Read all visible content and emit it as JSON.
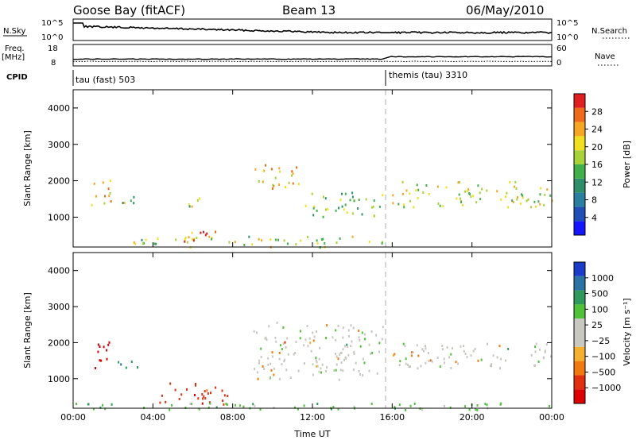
{
  "header": {
    "station": "Goose Bay (fitACF)",
    "beam": "Beam 13",
    "date": "06/May/2010"
  },
  "panels": {
    "nsky": {
      "label": "N.Sky",
      "tick_top": "10^5",
      "tick_bot": "10^0"
    },
    "nsearch": {
      "label": "N.Search",
      "tick_top": "10^5",
      "tick_bot": "10^0"
    },
    "freq": {
      "label_line1": "Freq.",
      "label_line2": "[MHz]",
      "tick_top": "18",
      "tick_bot": "8"
    },
    "nave": {
      "label": "Nave",
      "tick_top": "60",
      "tick_bot": "0"
    },
    "cpid": {
      "label": "CPID",
      "mode1": "tau (fast) 503",
      "mode2": "themis (tau) 3310"
    }
  },
  "chart_data": [
    {
      "type": "heatmap",
      "quantity": "Power",
      "ylabel": "Slant Range [km]",
      "xlabel": "",
      "ylim": [
        180,
        4500
      ],
      "xlim_hours": [
        0,
        24
      ],
      "x_ticks": [
        "00:00",
        "04:00",
        "08:00",
        "12:00",
        "16:00",
        "20:00",
        "00:00"
      ],
      "y_ticks": [
        "1000",
        "2000",
        "3000",
        "4000"
      ],
      "colorbar": {
        "label": "Power [dB]",
        "ticks": [
          "4",
          "8",
          "12",
          "16",
          "20",
          "24",
          "28"
        ],
        "colors": [
          "#1515ff",
          "#1f4fb5",
          "#2a7fa0",
          "#2f8f6a",
          "#42b04a",
          "#a8d23a",
          "#f0e020",
          "#f5a623",
          "#ef6a1a",
          "#e02020"
        ]
      },
      "gap_at_hour": 15.75,
      "regions": [
        {
          "t": [
            0.9,
            1.9
          ],
          "r": [
            1300,
            2100
          ],
          "level": 0.6
        },
        {
          "t": [
            2.2,
            3.2
          ],
          "r": [
            1300,
            1700
          ],
          "level": 0.5
        },
        {
          "t": [
            5.7,
            6.4
          ],
          "r": [
            1300,
            1800
          ],
          "level": 0.5
        },
        {
          "t": [
            9.1,
            11.5
          ],
          "r": [
            1800,
            2500
          ],
          "level": 0.65
        },
        {
          "t": [
            11.5,
            15.5
          ],
          "r": [
            1000,
            1700
          ],
          "level": 0.45
        },
        {
          "t": [
            16.0,
            24.0
          ],
          "r": [
            1300,
            2000
          ],
          "level": 0.55
        },
        {
          "t": [
            3.0,
            15.5
          ],
          "r": [
            200,
            500
          ],
          "level": 0.5
        },
        {
          "t": [
            5.2,
            7.2
          ],
          "r": [
            350,
            650
          ],
          "level": 0.8
        }
      ]
    },
    {
      "type": "heatmap",
      "quantity": "Velocity",
      "ylabel": "Slant Range [km]",
      "xlabel": "Time UT",
      "ylim": [
        180,
        4500
      ],
      "xlim_hours": [
        0,
        24
      ],
      "x_ticks": [
        "00:00",
        "04:00",
        "08:00",
        "12:00",
        "16:00",
        "20:00",
        "00:00"
      ],
      "y_ticks": [
        "1000",
        "2000",
        "3000",
        "4000"
      ],
      "colorbar": {
        "label": "Velocity [m s⁻¹]",
        "ticks": [
          "1000",
          "500",
          "100",
          "25",
          "−25",
          "−100",
          "−500",
          "−1000"
        ],
        "colors": [
          "#1a3cc8",
          "#2a73a3",
          "#2f9a5c",
          "#4fc23a",
          "#c8c8c0",
          "#c8c8c0",
          "#f5b030",
          "#f07a10",
          "#e03010",
          "#dd0000"
        ]
      },
      "gap_at_hour": 15.75,
      "regions": [
        {
          "t": [
            0.9,
            1.9
          ],
          "r": [
            1300,
            2100
          ],
          "v": -800
        },
        {
          "t": [
            2.2,
            3.2
          ],
          "r": [
            1300,
            1700
          ],
          "v": 200
        },
        {
          "t": [
            4.3,
            7.8
          ],
          "r": [
            300,
            900
          ],
          "v": -400
        },
        {
          "t": [
            9.0,
            15.5
          ],
          "r": [
            1000,
            2600
          ],
          "v": 0
        },
        {
          "t": [
            16.0,
            24.0
          ],
          "r": [
            1300,
            2000
          ],
          "v": 0
        },
        {
          "t": [
            0.0,
            24.0
          ],
          "r": [
            150,
            350
          ],
          "v": 50
        }
      ]
    }
  ],
  "colors": {
    "panel_bg": "#ffffff",
    "axis": "#000000",
    "gap_line": "#bbbbbb"
  }
}
